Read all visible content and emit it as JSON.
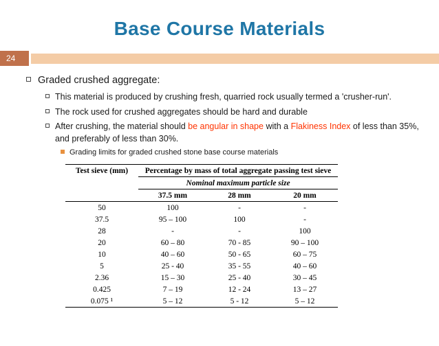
{
  "slide": {
    "title": "Base Course Materials",
    "number": "24"
  },
  "content": {
    "heading": "Graded crushed aggregate:",
    "bullet1": "This material is produced by crushing fresh,  quarried rock usually termed a 'crusher-run'.",
    "bullet2": "The rock used for crushed aggregates should be hard and durable",
    "bullet3": {
      "p1": "After crushing, the material should ",
      "red1": "be angular in shape",
      "p2": " with a ",
      "red2": "Flakiness Index",
      "p3": " of less than 35%, and preferably of less than 30%."
    },
    "sub_bullet": "Grading limits for graded crushed stone base course materials"
  },
  "table": {
    "col1_header": "Test sieve (mm)",
    "span_header": "Percentage by mass of total aggregate passing test sieve",
    "nominal_header": "Nominal maximum particle size",
    "size_headers": [
      "37.5 mm",
      "28 mm",
      "20 mm"
    ],
    "rows": [
      [
        "50",
        "100",
        "-",
        "-"
      ],
      [
        "37.5",
        "95 – 100",
        "100",
        "-"
      ],
      [
        "28",
        "-",
        "-",
        "100"
      ],
      [
        "20",
        "60 – 80",
        "70 - 85",
        "90 – 100"
      ],
      [
        "10",
        "40 – 60",
        "50 - 65",
        "60 – 75"
      ],
      [
        "5",
        "25 - 40",
        "35 - 55",
        "40 – 60"
      ],
      [
        "2.36",
        "15 – 30",
        "25 - 40",
        "30 – 45"
      ],
      [
        "0.425",
        "7 – 19",
        "12 - 24",
        "13 – 27"
      ],
      [
        "0.075 ¹",
        "5 – 12",
        "5 - 12",
        "5 – 12"
      ]
    ]
  },
  "colors": {
    "title_blue": "#1f76a6",
    "accent_red": "#ff3300",
    "bar_light": "#f4cca6",
    "bar_dark": "#c0714b",
    "bullet_orange": "#e8913f"
  }
}
